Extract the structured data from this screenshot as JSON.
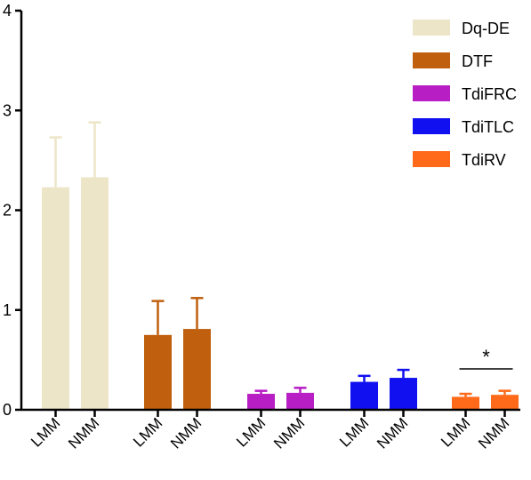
{
  "chart_data": {
    "type": "bar",
    "title": "",
    "xlabel": "",
    "ylabel": "",
    "ylim": [
      0,
      4
    ],
    "yticks": [
      "0",
      "1",
      "2",
      "3",
      "4"
    ],
    "grid": false,
    "legend_position": "top-right",
    "groups": [
      {
        "name": "Dq-DE",
        "color": "#ede5c8",
        "bars": [
          {
            "category": "LMM",
            "value": 2.23,
            "error": 0.5
          },
          {
            "category": "NMM",
            "value": 2.33,
            "error": 0.55
          }
        ]
      },
      {
        "name": "DTF",
        "color": "#c0600f",
        "bars": [
          {
            "category": "LMM",
            "value": 0.75,
            "error": 0.34
          },
          {
            "category": "NMM",
            "value": 0.81,
            "error": 0.31
          }
        ]
      },
      {
        "name": "TdiFRC",
        "color": "#b71fc4",
        "bars": [
          {
            "category": "LMM",
            "value": 0.16,
            "error": 0.03
          },
          {
            "category": "NMM",
            "value": 0.17,
            "error": 0.05
          }
        ]
      },
      {
        "name": "TdiTLC",
        "color": "#1010f0",
        "bars": [
          {
            "category": "LMM",
            "value": 0.28,
            "error": 0.06
          },
          {
            "category": "NMM",
            "value": 0.32,
            "error": 0.08
          }
        ]
      },
      {
        "name": "TdiRV",
        "color": "#ff6a1a",
        "bars": [
          {
            "category": "LMM",
            "value": 0.13,
            "error": 0.03
          },
          {
            "category": "NMM",
            "value": 0.15,
            "error": 0.04
          }
        ]
      }
    ],
    "annotations": [
      {
        "text": "*",
        "group": "TdiRV",
        "type": "significance-bracket"
      }
    ]
  }
}
